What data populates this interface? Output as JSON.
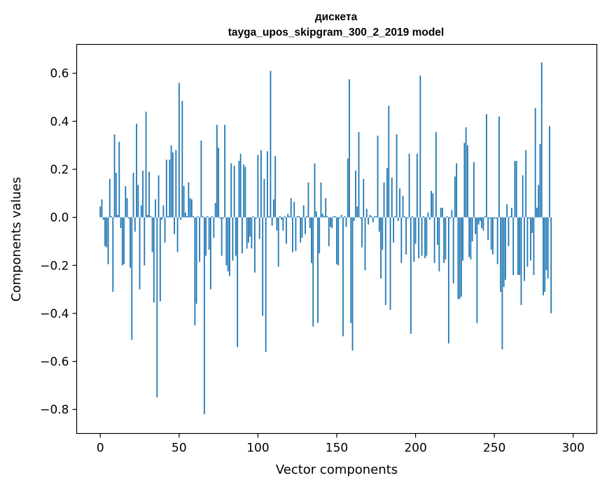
{
  "chart_data": {
    "type": "bar",
    "title": "дискета",
    "subtitle": "tayga_upos_skipgram_300_2_2019 model",
    "xlabel": "Vector components",
    "ylabel": "Components values",
    "xlim": [
      -15,
      315
    ],
    "ylim": [
      -0.9,
      0.72
    ],
    "xticks": [
      0,
      50,
      100,
      150,
      200,
      250,
      300
    ],
    "xtick_labels": [
      "0",
      "50",
      "100",
      "150",
      "200",
      "250",
      "300"
    ],
    "yticks": [
      0.6,
      0.4,
      0.2,
      0.0,
      -0.2,
      -0.4,
      -0.6,
      -0.8
    ],
    "ytick_labels": [
      "0.6",
      "0.4",
      "0.2",
      "0.0",
      "−0.2",
      "−0.4",
      "−0.6",
      "−0.8"
    ],
    "bar_color": "#1f77b4",
    "grid": false,
    "series": [
      {
        "name": "дискета",
        "values": [
          0.045,
          0.075,
          -0.01,
          -0.12,
          -0.125,
          -0.195,
          0.16,
          0.005,
          -0.31,
          0.345,
          0.185,
          0.01,
          0.315,
          -0.045,
          -0.2,
          -0.195,
          0.13,
          0.08,
          -0.005,
          -0.21,
          -0.51,
          0.185,
          -0.06,
          0.39,
          0.135,
          -0.3,
          0.05,
          0.195,
          -0.2,
          0.44,
          0.01,
          0.19,
          0.005,
          -0.145,
          -0.355,
          0.075,
          -0.75,
          0.175,
          -0.35,
          -0.01,
          0.05,
          -0.105,
          0.24,
          0.005,
          0.24,
          0.3,
          0.27,
          -0.07,
          0.28,
          -0.145,
          0.56,
          -0.01,
          0.485,
          0.13,
          0.02,
          0.005,
          0.145,
          0.08,
          0.075,
          0.005,
          -0.45,
          -0.36,
          0.005,
          -0.185,
          0.32,
          0.005,
          -0.82,
          -0.16,
          0.005,
          -0.135,
          -0.3,
          0.005,
          -0.085,
          0.06,
          0.385,
          0.29,
          -0.005,
          -0.16,
          -0.005,
          0.385,
          -0.2,
          -0.225,
          -0.245,
          0.225,
          -0.18,
          0.215,
          -0.16,
          -0.54,
          0.235,
          0.265,
          -0.15,
          0.22,
          0.21,
          -0.13,
          -0.105,
          -0.08,
          -0.13,
          0.005,
          -0.23,
          -0.005,
          0.26,
          -0.09,
          0.28,
          -0.41,
          0.16,
          -0.56,
          0.275,
          0.005,
          0.61,
          -0.035,
          0.075,
          0.255,
          -0.055,
          -0.205,
          0.005,
          -0.01,
          -0.055,
          0.005,
          -0.11,
          0.015,
          0.005,
          0.08,
          -0.145,
          0.065,
          -0.14,
          0.005,
          0.005,
          -0.105,
          -0.085,
          0.05,
          -0.07,
          0.005,
          0.145,
          -0.045,
          -0.19,
          -0.455,
          0.225,
          0.025,
          -0.44,
          -0.15,
          0.145,
          0.015,
          0.005,
          0.08,
          0.005,
          -0.12,
          -0.04,
          -0.045,
          0.005,
          0.005,
          -0.195,
          -0.2,
          -0.005,
          0.01,
          -0.495,
          0.005,
          -0.04,
          0.245,
          0.575,
          -0.44,
          -0.555,
          -0.015,
          0.195,
          0.045,
          0.355,
          -0.005,
          -0.125,
          0.16,
          -0.22,
          0.035,
          -0.03,
          0.01,
          0.005,
          -0.02,
          0.005,
          0.005,
          0.34,
          -0.06,
          -0.255,
          -0.135,
          0.145,
          -0.365,
          0.205,
          0.465,
          -0.385,
          0.165,
          -0.105,
          0.005,
          0.345,
          -0.015,
          0.12,
          -0.19,
          0.09,
          0.005,
          -0.155,
          -0.005,
          0.265,
          -0.485,
          0.005,
          -0.185,
          -0.11,
          0.265,
          -0.17,
          0.59,
          -0.16,
          0.005,
          -0.17,
          -0.16,
          0.02,
          -0.01,
          0.11,
          0.1,
          -0.19,
          0.355,
          -0.115,
          -0.225,
          0.04,
          0.04,
          -0.19,
          -0.175,
          0.005,
          -0.525,
          -0.005,
          0.03,
          -0.275,
          0.17,
          0.225,
          -0.34,
          -0.34,
          -0.33,
          -0.18,
          0.31,
          0.375,
          0.3,
          -0.165,
          -0.175,
          -0.1,
          0.23,
          -0.07,
          -0.44,
          -0.03,
          -0.015,
          -0.045,
          -0.055,
          0.005,
          0.43,
          -0.095,
          -0.005,
          -0.135,
          -0.155,
          -0.005,
          -0.005,
          -0.195,
          0.42,
          -0.31,
          -0.55,
          -0.29,
          -0.26,
          0.055,
          -0.12,
          0.005,
          0.04,
          -0.24,
          0.235,
          0.235,
          -0.24,
          -0.24,
          -0.365,
          0.175,
          -0.265,
          0.28,
          -0.205,
          -0.005,
          -0.18,
          -0.065,
          -0.24,
          0.455,
          0.04,
          0.135,
          0.305,
          0.645,
          -0.325,
          -0.31,
          -0.22,
          -0.255,
          0.38,
          -0.4
        ]
      }
    ]
  }
}
